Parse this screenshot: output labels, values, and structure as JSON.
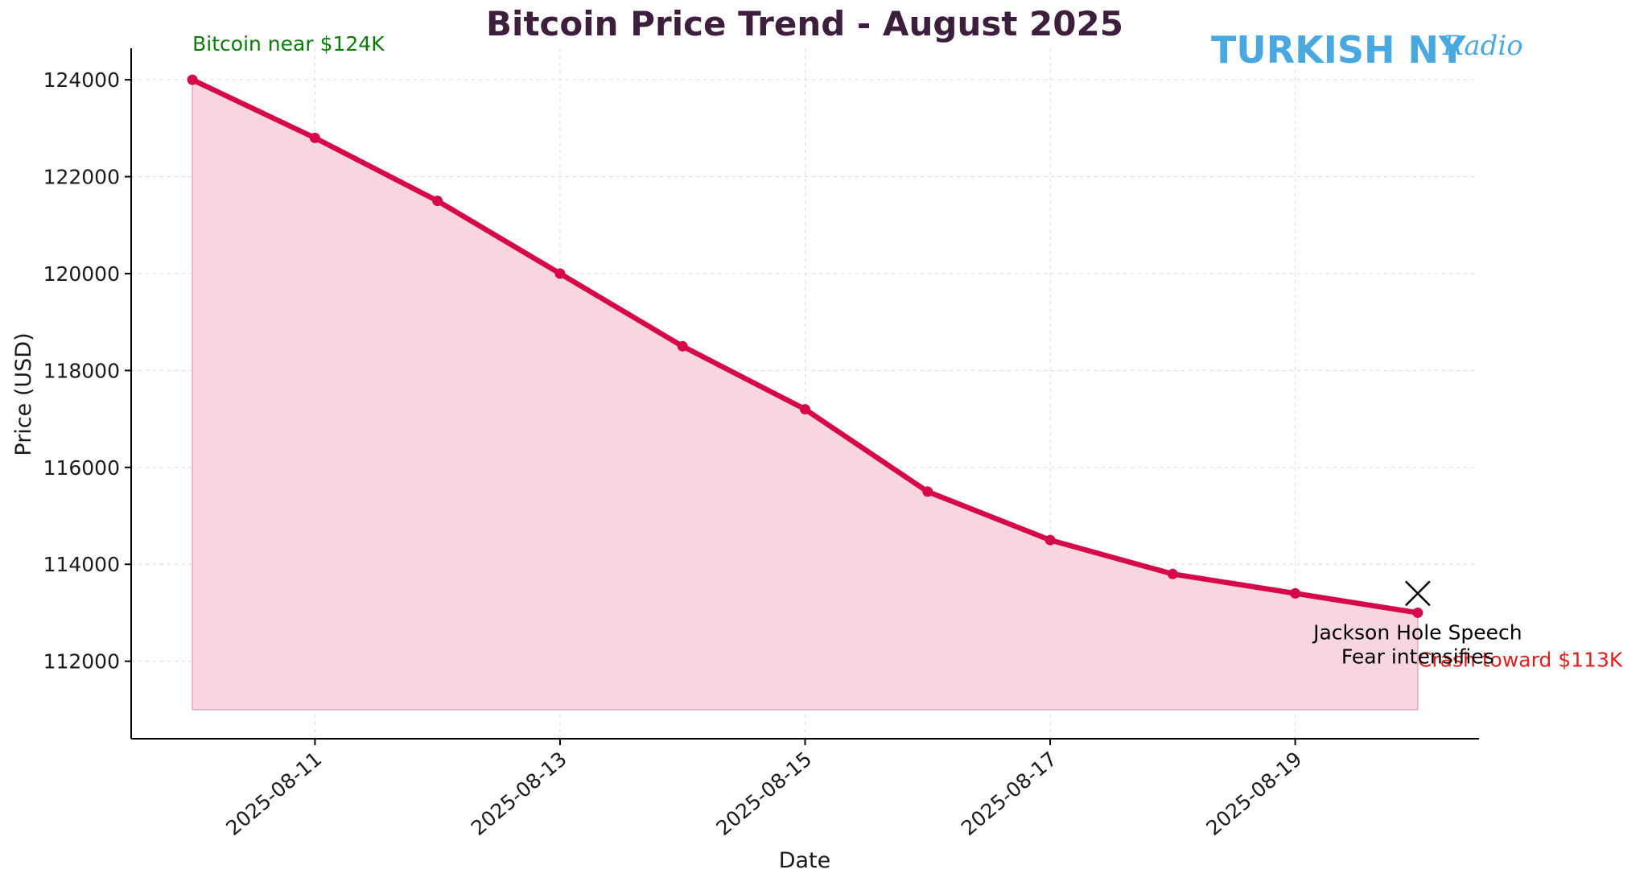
{
  "brand": {
    "name": "TURKISH NY",
    "script": "Radio",
    "color": "#4aa8e0"
  },
  "chart_data": {
    "type": "area",
    "title": "Bitcoin Price Trend - August 2025",
    "xlabel": "Date",
    "ylabel": "Price (USD)",
    "x": [
      "2025-08-10",
      "2025-08-11",
      "2025-08-12",
      "2025-08-13",
      "2025-08-14",
      "2025-08-15",
      "2025-08-16",
      "2025-08-17",
      "2025-08-18",
      "2025-08-19",
      "2025-08-20"
    ],
    "series": [
      {
        "values": [
          124000,
          122800,
          121500,
          120000,
          118500,
          117200,
          115500,
          114500,
          113800,
          113400,
          113000
        ]
      }
    ],
    "fill_baseline": 111000,
    "ylim": [
      110400,
      124650
    ],
    "xlim": [
      "2025-08-09.5",
      "2025-08-20.5"
    ],
    "yticks": [
      112000,
      114000,
      116000,
      118000,
      120000,
      122000,
      124000
    ],
    "xticks": [
      "2025-08-11",
      "2025-08-13",
      "2025-08-15",
      "2025-08-17",
      "2025-08-19"
    ],
    "grid": true,
    "colors": {
      "line": "#d6084a",
      "fill": "#f7d6e0",
      "title": "#3d1f3d",
      "annotation_start": "#0a7a0a",
      "annotation_end": "#e0201c"
    },
    "annotations": [
      {
        "text": "Bitcoin near $124K",
        "x": "2025-08-10",
        "y": 124000,
        "color": "#0a7a0a"
      },
      {
        "text": "Crash toward $113K",
        "x": "2025-08-20",
        "y": 113000,
        "color": "#e0201c"
      },
      {
        "lines": [
          "Jackson Hole Speech",
          "Fear intensifies"
        ],
        "x": "2025-08-20",
        "y": 113400,
        "marker": "x",
        "color": "#000000"
      }
    ]
  }
}
